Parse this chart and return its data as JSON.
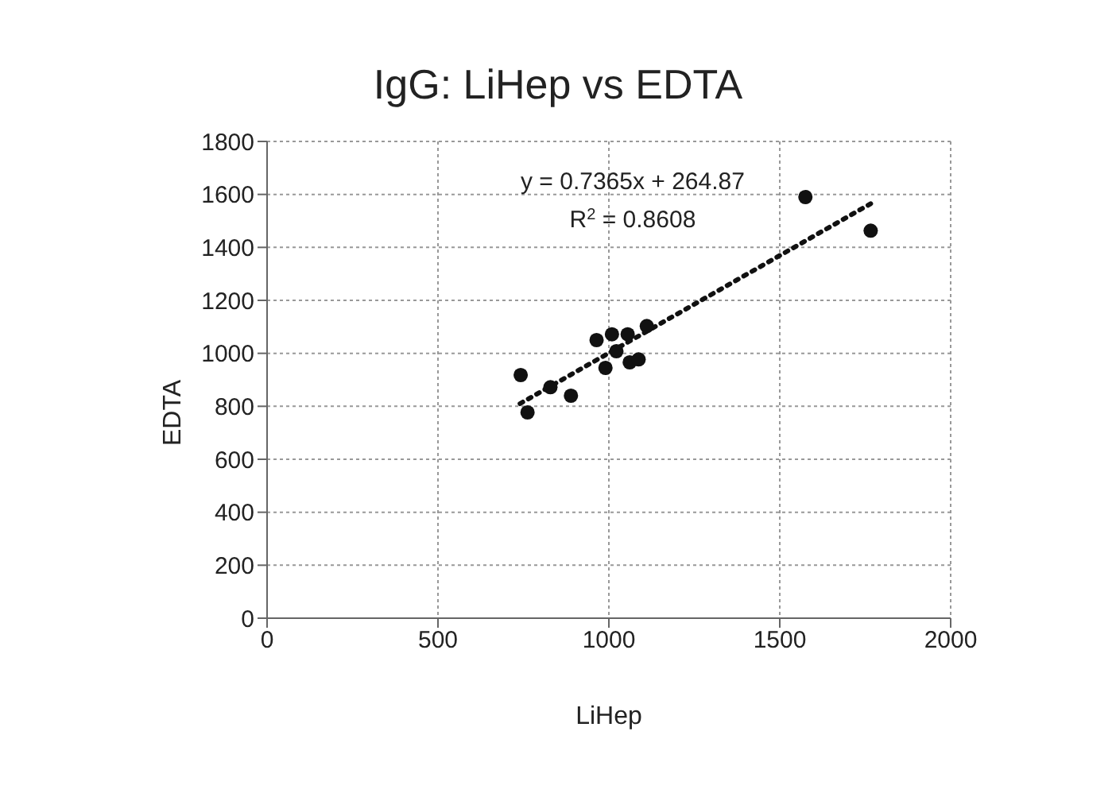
{
  "chart_data": {
    "type": "scatter",
    "title": "IgG: LiHep vs EDTA",
    "xlabel": "LiHep",
    "ylabel": "EDTA",
    "xlim": [
      0,
      2000
    ],
    "xticks": [
      0,
      500,
      1000,
      1500,
      2000
    ],
    "ylim": [
      0,
      1800
    ],
    "yticks": [
      0,
      200,
      400,
      600,
      800,
      1000,
      1200,
      1400,
      1600,
      1800
    ],
    "grid": true,
    "legend": false,
    "marker": "circle",
    "series": [
      {
        "color": "#111111",
        "x": [
          742,
          762,
          829,
          889,
          964,
          990,
          1009,
          1022,
          1055,
          1061,
          1087,
          1111,
          1575,
          1766
        ],
        "values": [
          918,
          777,
          872,
          840,
          1050,
          945,
          1072,
          1008,
          1072,
          966,
          977,
          1103,
          1590,
          1463
        ]
      },
      {
        "type": "line",
        "color": "#111111",
        "line_style": "dotted",
        "marker": "none",
        "x": [
          740,
          1766
        ],
        "values": [
          810,
          1565
        ]
      }
    ],
    "annotations": [
      "y = 0.7365x + 264.87",
      "R$^{2}$ = 0.8608"
    ]
  }
}
